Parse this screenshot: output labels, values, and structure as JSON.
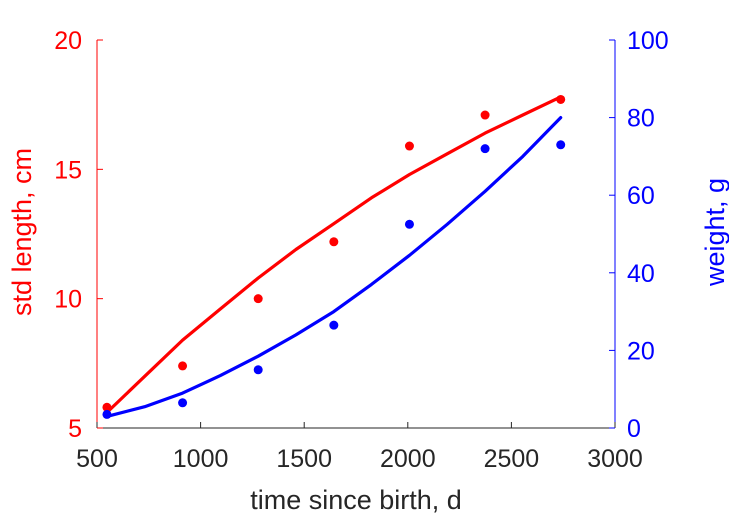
{
  "chart_data": {
    "type": "scatter",
    "title": "",
    "xlabel": "time since birth, d",
    "ylabel_left": "std length, cm",
    "ylabel_right": "weight, g",
    "xlim": [
      500,
      3000
    ],
    "ylim_left": [
      5,
      20
    ],
    "ylim_right": [
      0,
      100
    ],
    "xticks": [
      500,
      1000,
      1500,
      2000,
      2500,
      3000
    ],
    "yticks_left": [
      5,
      10,
      15,
      20
    ],
    "yticks_right": [
      0,
      20,
      40,
      60,
      80,
      100
    ],
    "grid": false,
    "colors": {
      "length": "#ff0000",
      "weight": "#0000ff",
      "axis": "#262626"
    },
    "series": [
      {
        "axis": "left",
        "kind": "points",
        "x": [
          548,
          913,
          1278,
          1643,
          2008,
          2373,
          2738
        ],
        "y": [
          5.8,
          7.4,
          10.0,
          12.2,
          15.9,
          17.1,
          17.7
        ]
      },
      {
        "axis": "left",
        "kind": "line",
        "x": [
          548,
          730,
          913,
          1095,
          1278,
          1460,
          1643,
          1825,
          2008,
          2190,
          2373,
          2555,
          2738
        ],
        "y": [
          5.6,
          7.0,
          8.4,
          9.6,
          10.8,
          11.9,
          12.9,
          13.9,
          14.8,
          15.6,
          16.4,
          17.1,
          17.8
        ]
      },
      {
        "axis": "right",
        "kind": "points",
        "x": [
          548,
          913,
          1278,
          1643,
          2008,
          2373,
          2738
        ],
        "y": [
          3.5,
          6.5,
          15,
          26.5,
          52.5,
          72,
          73
        ]
      },
      {
        "axis": "right",
        "kind": "line",
        "x": [
          548,
          730,
          913,
          1095,
          1278,
          1460,
          1643,
          1825,
          2008,
          2190,
          2373,
          2555,
          2738
        ],
        "y": [
          3,
          5.5,
          9,
          13.5,
          18.5,
          24,
          30,
          37,
          44.5,
          52.5,
          61,
          70,
          80
        ]
      }
    ]
  }
}
